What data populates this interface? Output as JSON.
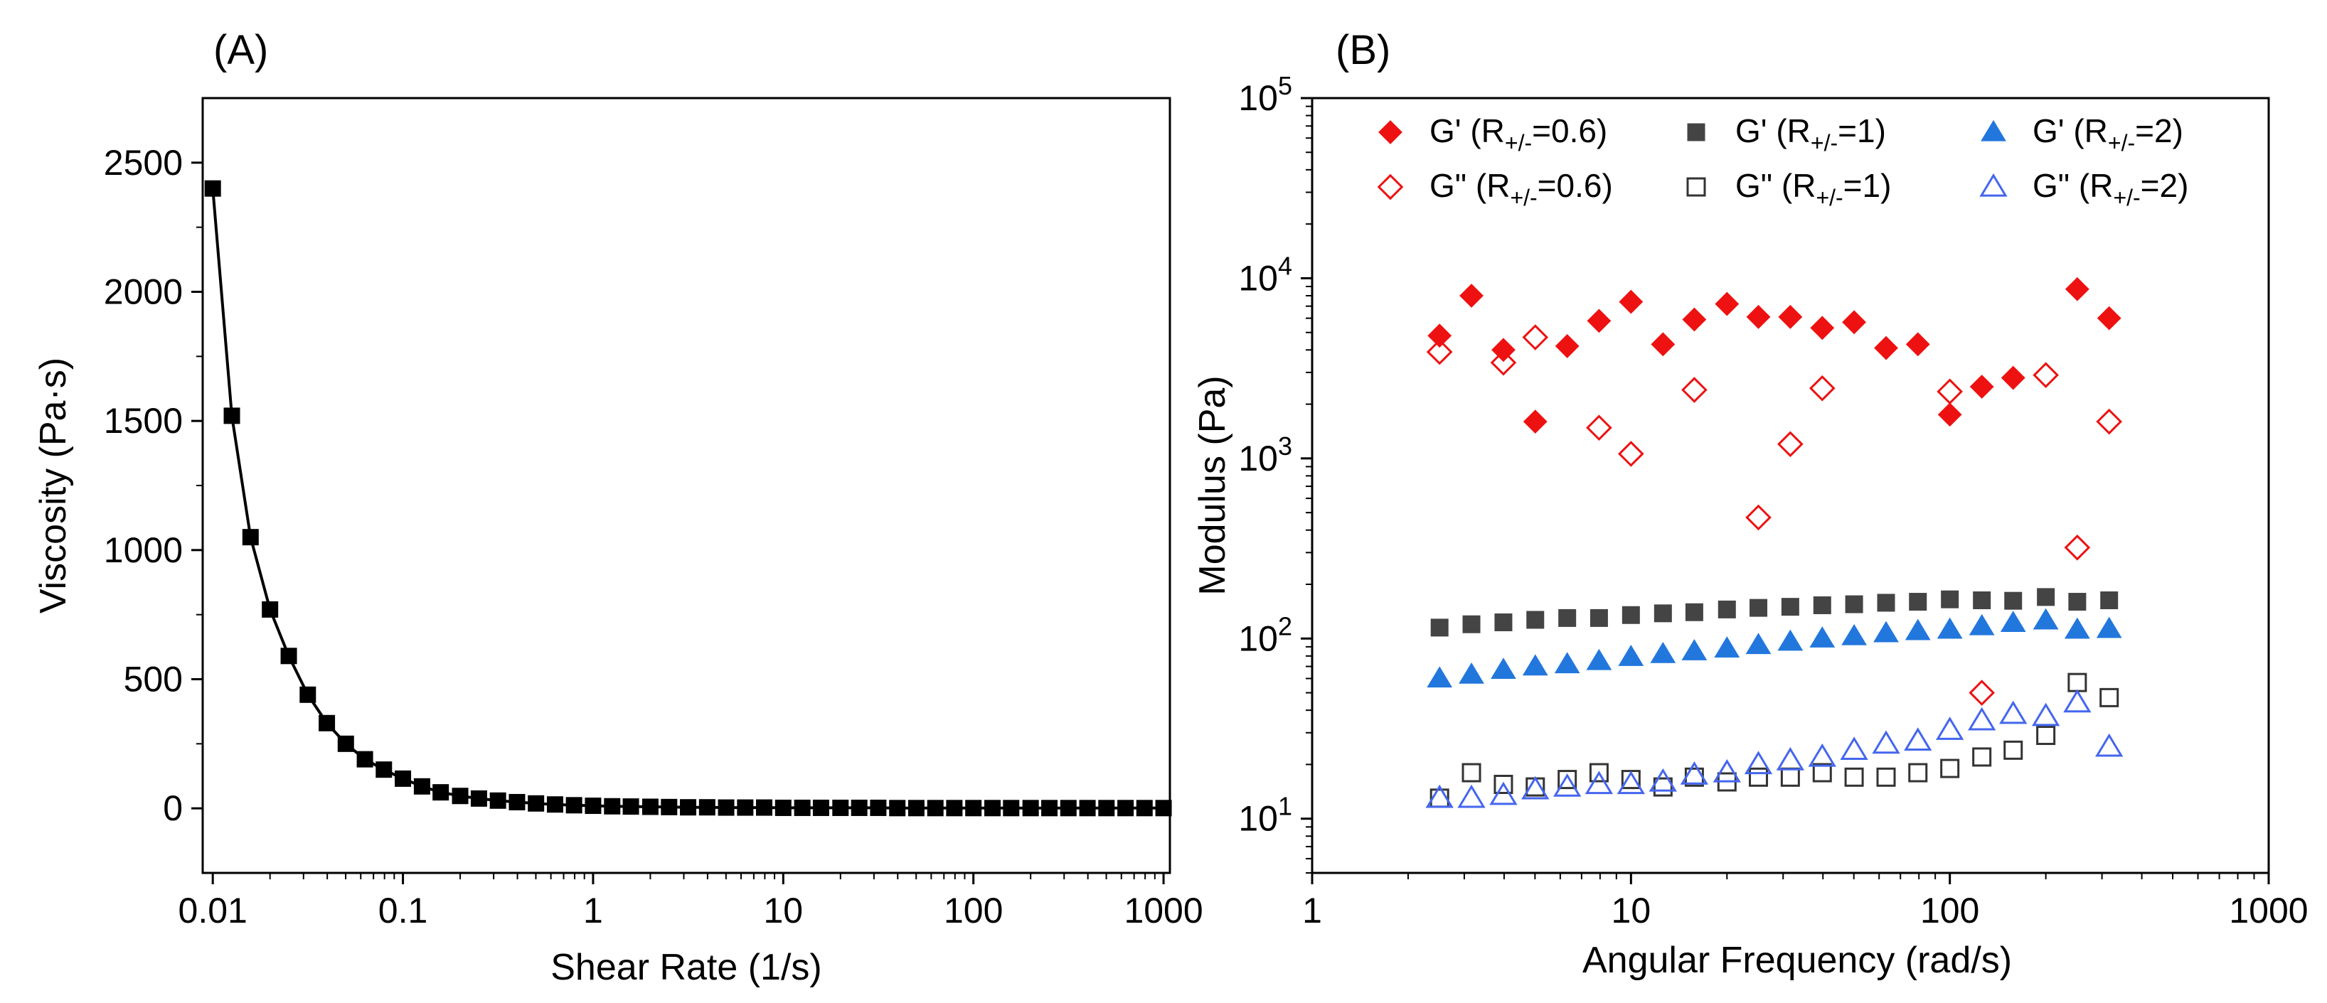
{
  "chart_data": [
    {
      "panel": "(A)",
      "type": "line",
      "xlabel": "Shear Rate (1/s)",
      "ylabel": "Viscosity (Pa·s)",
      "xscale": "log",
      "xlim": [
        0.00885,
        1080
      ],
      "ylim": [
        -250,
        2750
      ],
      "x_ticks": [
        0.01,
        0.1,
        1,
        10,
        100,
        1000
      ],
      "x_tick_labels": [
        "0.01",
        "0.1",
        "1",
        "10",
        "100",
        "1000"
      ],
      "y_ticks": [
        0,
        500,
        1000,
        1500,
        2000,
        2500
      ],
      "y_tick_labels": [
        "0",
        "500",
        "1000",
        "1500",
        "2000",
        "2500"
      ],
      "marker": "filled-square",
      "color": "#000000",
      "series": [
        {
          "name": "Viscosity",
          "x": [
            0.01,
            0.0126,
            0.0158,
            0.02,
            0.0251,
            0.0316,
            0.0398,
            0.0501,
            0.0631,
            0.0794,
            0.1,
            0.126,
            0.158,
            0.2,
            0.251,
            0.316,
            0.398,
            0.501,
            0.631,
            0.794,
            1,
            1.26,
            1.58,
            2,
            2.51,
            3.16,
            3.98,
            5.01,
            6.31,
            7.94,
            10,
            12.6,
            15.8,
            20,
            25.1,
            31.6,
            39.8,
            50.1,
            63.1,
            79.4,
            100,
            126,
            158,
            200,
            251,
            316,
            398,
            501,
            631,
            794,
            1000
          ],
          "y": [
            2400,
            1520,
            1050,
            770,
            590,
            440,
            330,
            250,
            190,
            150,
            115,
            85,
            62,
            48,
            38,
            30,
            24,
            19,
            15,
            12,
            10,
            8,
            7,
            6,
            5,
            4,
            4,
            3,
            3,
            3,
            2,
            2,
            2,
            2,
            2,
            2,
            1,
            1,
            1,
            1,
            1,
            1,
            1,
            1,
            1,
            1,
            1,
            1,
            1,
            1,
            1
          ]
        }
      ]
    },
    {
      "panel": "(B)",
      "type": "scatter",
      "xlabel": "Angular Frequency (rad/s)",
      "ylabel": "Modulus (Pa)",
      "xscale": "log",
      "yscale": "log",
      "xlim": [
        1,
        1000
      ],
      "ylim": [
        5,
        100000
      ],
      "x_ticks": [
        1,
        10,
        100,
        1000
      ],
      "x_tick_labels": [
        "1",
        "10",
        "100",
        "1000"
      ],
      "y_ticks": [
        10,
        100,
        1000,
        10000,
        100000
      ],
      "y_tick_labels": [
        {
          "base": "10",
          "exp": "1"
        },
        {
          "base": "10",
          "exp": "2"
        },
        {
          "base": "10",
          "exp": "3"
        },
        {
          "base": "10",
          "exp": "4"
        },
        {
          "base": "10",
          "exp": "5"
        }
      ],
      "legend_position": "top",
      "x": [
        2.51,
        3.16,
        3.98,
        5.01,
        6.31,
        7.94,
        10,
        12.6,
        15.8,
        20,
        25.1,
        31.6,
        39.8,
        50.1,
        63.1,
        79.4,
        100,
        126,
        158,
        200,
        251,
        316
      ],
      "series": [
        {
          "name": "G' (R+/-=0.6)",
          "legend": {
            "prefix": "G' (R",
            "sub": "+/-",
            "suffix": "=0.6)"
          },
          "marker": "diamond",
          "filled": true,
          "color": "#ee1111",
          "values": [
            4800,
            8000,
            4000,
            1600,
            4200,
            5800,
            7400,
            4300,
            5900,
            7200,
            6100,
            6100,
            5300,
            5700,
            4100,
            4300,
            1750,
            2500,
            2800,
            null,
            8700,
            6000
          ]
        },
        {
          "name": "G\" (R+/-=0.6)",
          "legend": {
            "prefix": "G\" (R",
            "sub": "+/-",
            "suffix": "=0.6)"
          },
          "marker": "diamond",
          "filled": false,
          "color": "#ee1111",
          "values": [
            3900,
            null,
            3400,
            4700,
            null,
            1480,
            1060,
            null,
            2400,
            null,
            470,
            1200,
            2450,
            null,
            null,
            null,
            2350,
            50,
            null,
            2900,
            320,
            1600
          ]
        },
        {
          "name": "G' (R+/-=1)",
          "legend": {
            "prefix": "G' (R",
            "sub": "+/-",
            "suffix": "=1)"
          },
          "marker": "square",
          "filled": true,
          "color": "#444444",
          "values": [
            115,
            120,
            123,
            127,
            130,
            130,
            135,
            138,
            140,
            145,
            148,
            150,
            153,
            155,
            158,
            160,
            165,
            163,
            162,
            170,
            160,
            163
          ]
        },
        {
          "name": "G\" (R+/-=1)",
          "legend": {
            "prefix": "G\" (R",
            "sub": "+/-",
            "suffix": "=1)"
          },
          "marker": "square",
          "filled": false,
          "color": "#333333",
          "values": [
            13,
            18,
            15.5,
            15,
            16.5,
            18,
            16.5,
            15,
            17,
            16,
            17,
            17,
            18,
            17,
            17,
            18,
            19,
            22,
            24,
            29,
            57,
            47
          ]
        },
        {
          "name": "G' (R+/-=2)",
          "legend": {
            "prefix": "G' (R",
            "sub": "+/-",
            "suffix": "=2)"
          },
          "marker": "triangle",
          "filled": true,
          "color": "#2277dd",
          "values": [
            60,
            63,
            67,
            70,
            72,
            75,
            79,
            82,
            85,
            88,
            92,
            96,
            100,
            103,
            107,
            110,
            112,
            117,
            122,
            126,
            112,
            113
          ]
        },
        {
          "name": "G\" (R+/-=2)",
          "legend": {
            "prefix": "G\" (R",
            "sub": "+/-",
            "suffix": "=2)"
          },
          "marker": "triangle",
          "filled": false,
          "color": "#4466ee",
          "values": [
            13,
            13,
            13.5,
            14.5,
            15,
            15.5,
            15.5,
            16,
            17.5,
            18,
            20,
            21,
            22,
            24,
            26,
            27,
            31,
            35,
            38,
            37,
            44,
            25
          ]
        }
      ]
    }
  ]
}
